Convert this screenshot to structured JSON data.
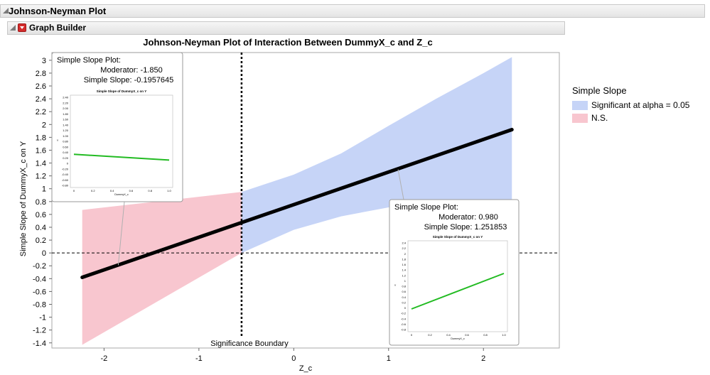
{
  "outline": {
    "title": "Johnson-Neyman Plot"
  },
  "graph_builder": {
    "title": "Graph Builder"
  },
  "colors": {
    "significant": "#c6d4f7",
    "ns": "#f8c6cf",
    "slope_line": "#000000",
    "inset_line": "#22bb22"
  },
  "legend": {
    "title": "Simple Slope",
    "items": [
      {
        "label": "Significant at alpha = 0.05",
        "color": "#c6d4f7"
      },
      {
        "label": "N.S.",
        "color": "#f8c6cf"
      }
    ]
  },
  "chart_data": {
    "type": "area",
    "title": "Johnson-Neyman Plot of Interaction Between DummyX_c and Z_c",
    "xlabel": "Z_c",
    "ylabel": "Simple Slope of DummyX_c on Y",
    "xlim": [
      -2.55,
      2.8
    ],
    "ylim": [
      -1.48,
      3.12
    ],
    "xticks": [
      -2,
      -1,
      0,
      1,
      2
    ],
    "yticks": [
      -1.4,
      -1.2,
      -1,
      -0.8,
      -0.6,
      -0.4,
      -0.2,
      0,
      0.2,
      0.4,
      0.6,
      0.8,
      1,
      1.2,
      1.4,
      1.6,
      1.8,
      2,
      2.2,
      2.4,
      2.6,
      2.8,
      3
    ],
    "boundary_x": -0.55,
    "boundary_label": "Significance Boundary",
    "zero_line": 0,
    "slope_line": {
      "x": [
        -2.23,
        2.3
      ],
      "y": [
        -0.38,
        1.92
      ]
    },
    "ns_band": {
      "x": [
        -2.23,
        -0.55
      ],
      "upper": [
        0.67,
        0.95
      ],
      "lower": [
        -1.43,
        0.0
      ]
    },
    "sig_band": {
      "x": [
        -0.55,
        0.0,
        0.5,
        1.0,
        1.5,
        2.0,
        2.3
      ],
      "upper": [
        0.95,
        1.22,
        1.55,
        1.98,
        2.4,
        2.8,
        3.05
      ],
      "lower": [
        0.0,
        0.36,
        0.57,
        0.71,
        0.77,
        0.79,
        0.8
      ]
    },
    "insets": [
      {
        "title": "Simple Slope Plot:",
        "moderator_label": "Moderator:",
        "moderator": "-1.850",
        "slope_label": "Simple Slope:",
        "slope": "-0.1957645",
        "anchor": {
          "x": -1.85,
          "y": -0.19
        },
        "plot_title": "Simple Slope of DummyX_c on Y",
        "plot_xlabel": "DummyX_c",
        "plot_ylabel": "Y",
        "plot_xticks": [
          "0",
          "0.2",
          "0.4",
          "0.6",
          "0.8",
          "1.0"
        ],
        "plot_yticks": [
          "2.40",
          "2.20",
          "2.00",
          "1.80",
          "1.60",
          "1.40",
          "1.20",
          "1.00",
          "0.80",
          "0.60",
          "0.40",
          "0.20",
          "0",
          "-0.20",
          "-0.40",
          "-0.60",
          "-0.80"
        ],
        "plot_ylim": [
          -0.8,
          2.4
        ],
        "plot_line": {
          "x": [
            0,
            1
          ],
          "y": [
            0.35,
            0.15
          ]
        }
      },
      {
        "title": "Simple Slope Plot:",
        "moderator_label": "Moderator:",
        "moderator": "0.980",
        "slope_label": "Simple Slope:",
        "slope": "1.251853",
        "anchor": {
          "x": 1.1,
          "y": 1.3
        },
        "plot_title": "Simple Slope of DummyX_c on Y",
        "plot_xlabel": "DummyX_c",
        "plot_ylabel": "Y",
        "plot_xticks": [
          "0",
          "0.2",
          "0.4",
          "0.6",
          "0.8",
          "1.0"
        ],
        "plot_yticks": [
          "2.4",
          "2.2",
          "2",
          "1.8",
          "1.6",
          "1.4",
          "1.2",
          "1",
          "0.8",
          "0.6",
          "0.4",
          "0.2",
          "0",
          "-0.2",
          "-0.4",
          "-0.6",
          "-0.8"
        ],
        "plot_ylim": [
          -0.8,
          2.4
        ],
        "plot_line": {
          "x": [
            0,
            1
          ],
          "y": [
            0.0,
            1.25
          ]
        }
      }
    ]
  }
}
